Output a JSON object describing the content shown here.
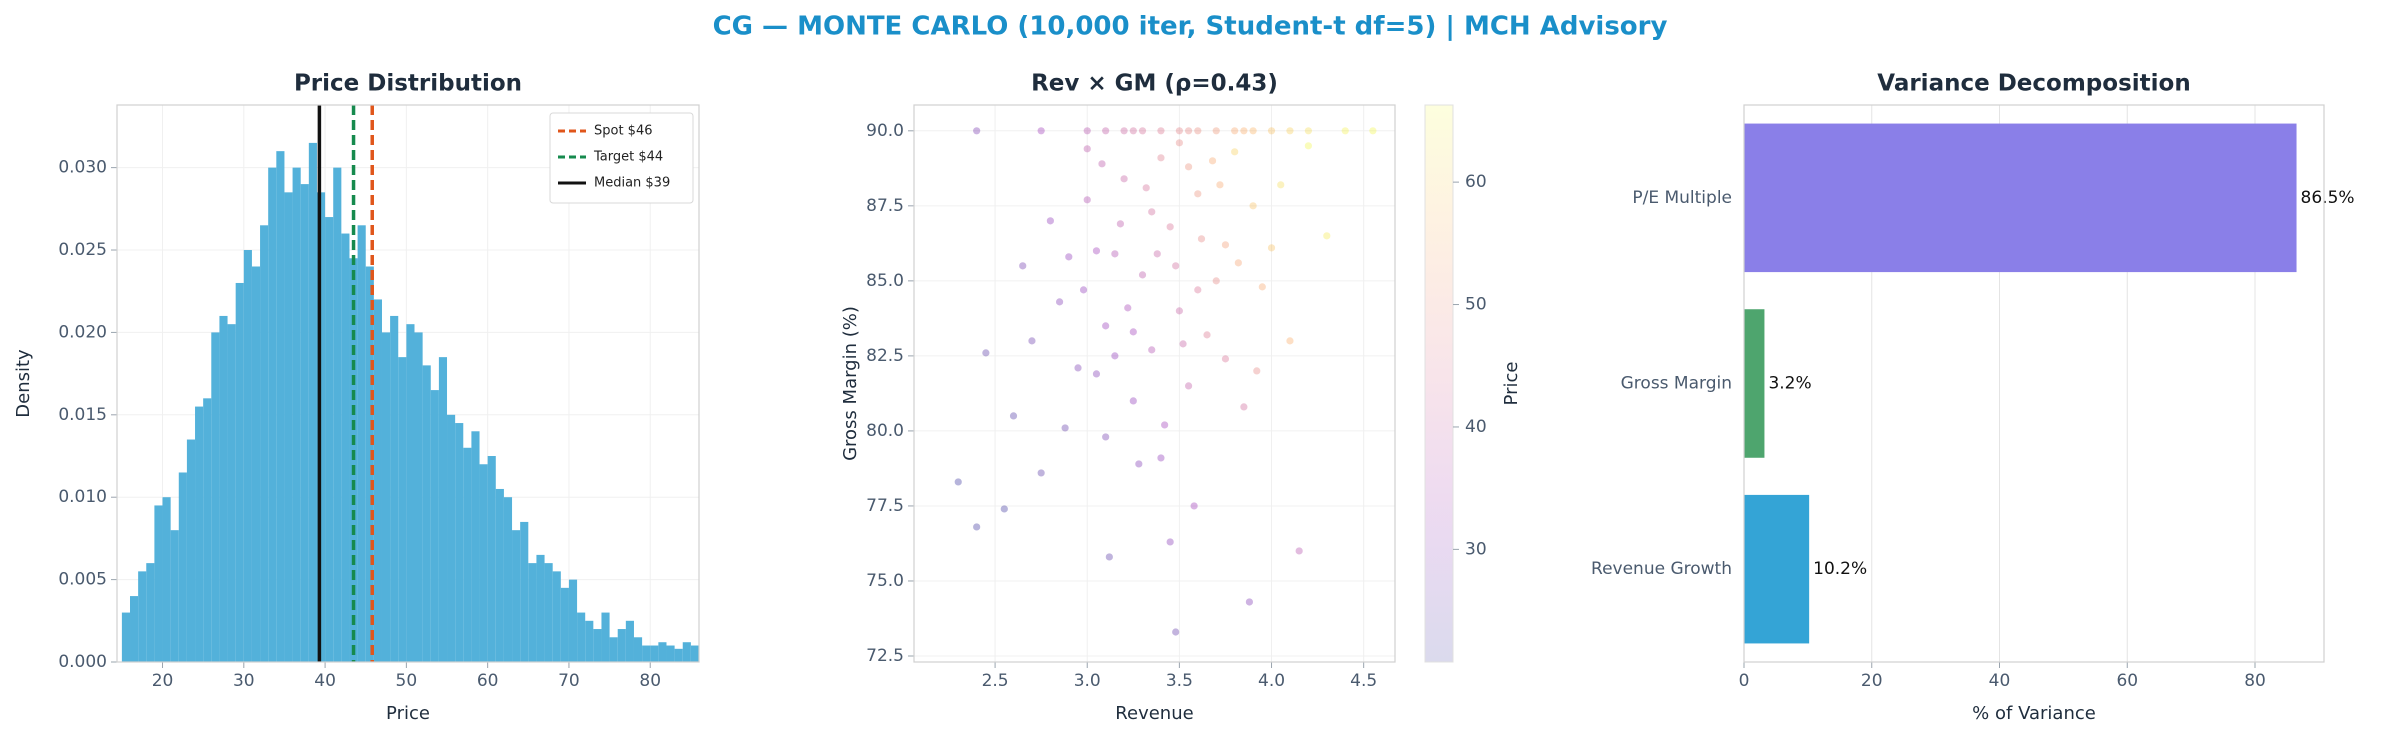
{
  "title": "CG — MONTE CARLO (10,000 iter, Student-t df=5) | MCH Advisory",
  "chart_data": [
    {
      "type": "histogram",
      "title": "Price Distribution",
      "xlabel": "Price",
      "ylabel": "Density",
      "color": "#4aadd8",
      "bins": [
        15,
        16,
        17,
        18,
        19,
        20,
        21,
        22,
        23,
        24,
        25,
        26,
        27,
        28,
        29,
        30,
        31,
        32,
        33,
        34,
        35,
        36,
        37,
        38,
        39,
        40,
        41,
        42,
        43,
        44,
        45,
        46,
        47,
        48,
        49,
        50,
        51,
        52,
        53,
        54,
        55,
        56,
        57,
        58,
        59,
        60,
        61,
        62,
        63,
        64,
        65,
        66,
        67,
        68,
        69,
        70,
        71,
        72,
        73,
        74,
        75,
        76,
        77,
        78,
        79,
        80,
        81,
        82,
        83,
        84,
        85,
        86
      ],
      "values": [
        0.003,
        0.004,
        0.0055,
        0.006,
        0.0095,
        0.01,
        0.008,
        0.0115,
        0.0135,
        0.0155,
        0.016,
        0.02,
        0.021,
        0.0205,
        0.023,
        0.025,
        0.024,
        0.0265,
        0.03,
        0.031,
        0.0285,
        0.03,
        0.029,
        0.0315,
        0.0285,
        0.027,
        0.03,
        0.026,
        0.0245,
        0.0265,
        0.024,
        0.022,
        0.02,
        0.021,
        0.0185,
        0.0205,
        0.02,
        0.018,
        0.0165,
        0.0185,
        0.015,
        0.0145,
        0.013,
        0.014,
        0.012,
        0.0125,
        0.0105,
        0.01,
        0.008,
        0.0085,
        0.006,
        0.0065,
        0.006,
        0.0055,
        0.0045,
        0.005,
        0.003,
        0.0025,
        0.002,
        0.003,
        0.0015,
        0.002,
        0.0025,
        0.0015,
        0.001,
        0.001,
        0.0012,
        0.001,
        0.0008,
        0.0012,
        0.001
      ],
      "xlim": [
        14.4,
        86
      ],
      "ylim": [
        0,
        0.0338
      ],
      "xticks": [
        20,
        30,
        40,
        50,
        60,
        70,
        80
      ],
      "yticks": [
        {
          "value": 0,
          "label": "0.000"
        },
        {
          "value": 0.005,
          "label": "0.005"
        },
        {
          "value": 0.01,
          "label": "0.010"
        },
        {
          "value": 0.015,
          "label": "0.015"
        },
        {
          "value": 0.02,
          "label": "0.020"
        },
        {
          "value": 0.025,
          "label": "0.025"
        },
        {
          "value": 0.03,
          "label": "0.030"
        }
      ],
      "grid": true,
      "legend": "upper right",
      "reference_lines": [
        {
          "name": "Spot $46",
          "value": 45.8,
          "color": "#e0561b",
          "style": "dashed"
        },
        {
          "name": "Target $44",
          "value": 43.5,
          "color": "#168a4e",
          "style": "dashed"
        },
        {
          "name": "Median $39",
          "value": 39.3,
          "color": "#111111",
          "style": "solid"
        }
      ]
    },
    {
      "type": "scatter",
      "title": "Rev × GM (ρ=0.43)",
      "xlabel": "Revenue",
      "ylabel": "Gross Margin (%)",
      "clabel": "Price",
      "colormap": "plasma_r",
      "alpha": 0.3,
      "x": [
        3.3,
        3.1,
        3.45,
        3.6,
        2.95,
        3.2,
        3.75,
        3.5,
        3.05,
        3.4,
        2.85,
        3.65,
        3.25,
        3.55,
        3.9,
        3.15,
        2.7,
        3.35,
        3.8,
        3.0,
        3.48,
        3.22,
        3.7,
        2.6,
        3.1,
        3.55,
        3.95,
        3.35,
        2.9,
        3.62,
        3.28,
        3.42,
        3.05,
        4.05,
        4.2,
        3.18,
        3.5,
        2.8,
        3.75,
        3.58,
        3.45,
        2.75,
        3.85,
        2.45,
        2.55,
        3.12,
        3.48,
        3.88,
        4.15,
        2.4,
        2.3,
        4.1,
        4.3,
        3.68,
        3.0,
        2.65,
        3.25,
        3.38,
        3.82,
        3.52,
        3.15,
        2.98,
        3.32,
        3.6,
        3.72,
        2.88,
        3.4,
        3.92,
        4.0,
        3.08,
        2.75,
        3.0,
        3.2,
        3.4,
        3.6,
        3.8,
        4.0,
        4.2,
        4.4,
        3.1,
        3.3,
        3.5,
        3.7,
        3.9,
        4.1,
        2.4,
        4.55,
        3.85,
        3.55,
        3.25
      ],
      "y": [
        85.2,
        83.5,
        86.8,
        87.9,
        82.1,
        88.4,
        86.2,
        84.0,
        86.0,
        89.1,
        84.3,
        83.2,
        81.0,
        88.8,
        87.5,
        85.9,
        83.0,
        82.7,
        89.3,
        87.7,
        85.5,
        84.1,
        85.0,
        80.5,
        79.8,
        81.5,
        84.8,
        87.3,
        85.8,
        86.4,
        78.9,
        80.2,
        81.9,
        88.2,
        89.5,
        86.9,
        89.6,
        87.0,
        82.4,
        77.5,
        76.3,
        78.6,
        80.8,
        82.6,
        77.4,
        75.8,
        73.3,
        74.3,
        76.0,
        76.8,
        78.3,
        83.0,
        86.5,
        89.0,
        89.4,
        85.5,
        83.3,
        85.9,
        85.6,
        82.9,
        82.5,
        84.7,
        88.1,
        84.7,
        88.2,
        80.1,
        79.1,
        82.0,
        86.1,
        88.9,
        90,
        90,
        90,
        90,
        90,
        90,
        90,
        90,
        90,
        90,
        90,
        90,
        90,
        90,
        90,
        90,
        90,
        90,
        90,
        90
      ],
      "c": [
        38,
        32,
        44,
        50,
        28,
        40,
        52,
        40,
        33,
        46,
        29,
        45,
        31,
        50,
        58,
        36,
        26,
        36,
        60,
        36,
        42,
        34,
        48,
        23,
        27,
        39,
        54,
        42,
        31,
        48,
        29,
        33,
        29,
        62,
        66,
        38,
        48,
        31,
        44,
        33,
        30,
        24,
        42,
        24,
        21,
        24,
        25,
        29,
        37,
        21,
        20,
        55,
        64,
        54,
        38,
        27,
        33,
        40,
        53,
        40,
        31,
        31,
        43,
        44,
        54,
        25,
        31,
        48,
        58,
        38,
        33,
        37,
        41,
        45,
        49,
        54,
        58,
        62,
        65,
        39,
        43,
        47,
        51,
        56,
        60,
        28,
        66,
        55,
        48,
        42
      ],
      "xlim": [
        2.06,
        4.67
      ],
      "ylim": [
        72.3,
        90.86
      ],
      "clim": [
        20.8,
        66.3
      ],
      "xticks": [
        2.5,
        {
          "value": 3,
          "label": "3.0"
        },
        3.5,
        {
          "value": 4,
          "label": "4.0"
        },
        4.5
      ],
      "yticks": [
        72.5,
        {
          "value": 75,
          "label": "75.0"
        },
        77.5,
        {
          "value": 80,
          "label": "80.0"
        },
        82.5,
        {
          "value": 85,
          "label": "85.0"
        },
        87.5,
        {
          "value": 90,
          "label": "90.0"
        }
      ],
      "cticks": [
        30,
        40,
        50,
        60
      ],
      "grid": true
    },
    {
      "type": "barh",
      "title": "Variance Decomposition",
      "xlabel": "% of Variance",
      "categories": [
        "P/E Multiple",
        "Gross Margin",
        "Revenue Growth"
      ],
      "values": [
        86.5,
        3.2,
        10.2
      ],
      "value_labels": [
        "86.5%",
        "3.2%",
        "10.2%"
      ],
      "colors": [
        "#8a7fe8",
        "#4ea56e",
        "#34a4d6"
      ],
      "xlim": [
        0,
        90.8
      ],
      "xticks": [
        0,
        20,
        40,
        60,
        80
      ],
      "grid": true
    }
  ]
}
